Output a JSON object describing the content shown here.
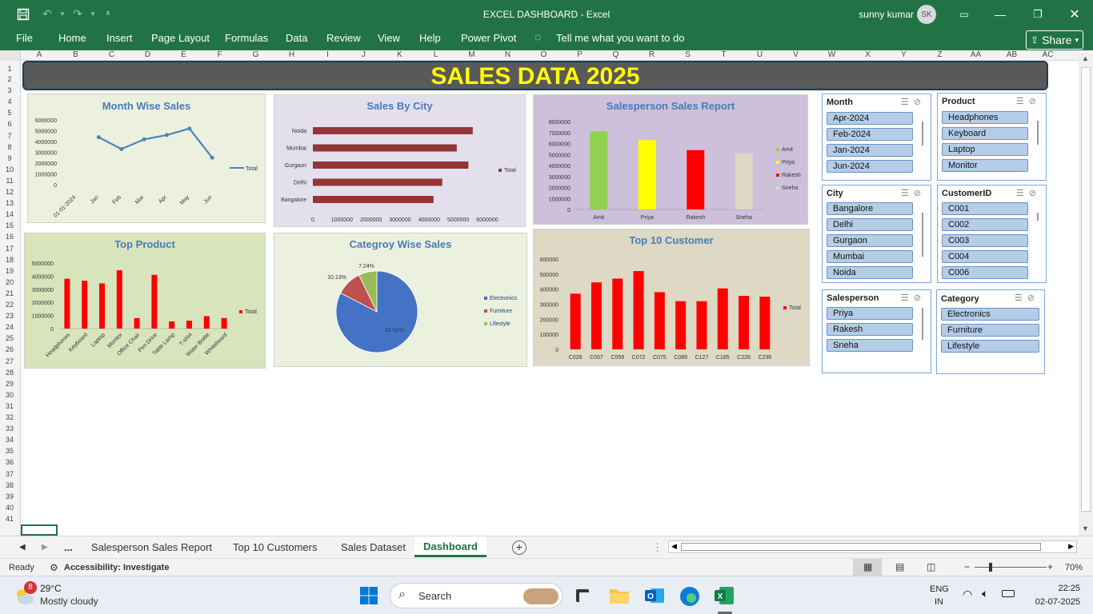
{
  "window": {
    "title": "EXCEL DASHBOARD  -  Excel",
    "user": "sunny kumar",
    "initials": "SK"
  },
  "ribbon": {
    "tabs": [
      "File",
      "Home",
      "Insert",
      "Page Layout",
      "Formulas",
      "Data",
      "Review",
      "View",
      "Help",
      "Power Pivot"
    ],
    "tell_me": "Tell me what you want to do",
    "share": "Share"
  },
  "columns": [
    "A",
    "B",
    "C",
    "D",
    "E",
    "F",
    "G",
    "H",
    "I",
    "J",
    "K",
    "L",
    "M",
    "N",
    "O",
    "P",
    "Q",
    "R",
    "S",
    "T",
    "U",
    "V",
    "W",
    "X",
    "Y",
    "Z",
    "AA",
    "AB",
    "AC"
  ],
  "rows": [
    "1",
    "2",
    "3",
    "4",
    "5",
    "6",
    "7",
    "8",
    "9",
    "10",
    "11",
    "12",
    "13",
    "14",
    "15",
    "16",
    "17",
    "18",
    "19",
    "20",
    "21",
    "22",
    "23",
    "24",
    "25",
    "26",
    "27",
    "28",
    "29",
    "30",
    "31",
    "32",
    "33",
    "34",
    "35",
    "36",
    "37",
    "38",
    "39",
    "40",
    "41"
  ],
  "banner": "SALES DATA 2025",
  "colors": {
    "excel_green": "#217346",
    "bar_red": "#ff0000",
    "city_bar": "#943634",
    "line_blue": "#4f81bd"
  },
  "chart_data": [
    {
      "id": "month",
      "type": "line",
      "title": "Month Wise Sales",
      "categories": [
        "01-01-2024",
        "Jan",
        "Feb",
        "Mar",
        "Apr",
        "May",
        "Jun"
      ],
      "values": [
        null,
        4400000,
        3300000,
        4200000,
        4600000,
        5200000,
        2500000
      ],
      "yticks": [
        "6000000",
        "5000000",
        "4000000",
        "3000000",
        "2000000",
        "1000000",
        "0"
      ],
      "ylim": [
        0,
        6000000
      ],
      "legend": [
        "Total"
      ]
    },
    {
      "id": "city",
      "type": "bar",
      "title": "Sales By City",
      "categories": [
        "Noida",
        "Mumbai",
        "Gurgaon",
        "Delhi",
        "Bangalore"
      ],
      "values": [
        5500000,
        4950000,
        5350000,
        4450000,
        4150000
      ],
      "xticks": [
        "0",
        "1000000",
        "2000000",
        "3000000",
        "4000000",
        "5000000",
        "6000000"
      ],
      "xlim": [
        0,
        6000000
      ],
      "legend": [
        "Total"
      ]
    },
    {
      "id": "salesperson",
      "type": "bar",
      "title": "Salesperson Sales Report",
      "categories": [
        "Amit",
        "Priya",
        "Rakesh",
        "Sneha"
      ],
      "values": [
        7100000,
        6300000,
        5400000,
        5100000
      ],
      "colors": [
        "#92d050",
        "#ffff00",
        "#ff0000",
        "#ddd9c4"
      ],
      "yticks": [
        "8000000",
        "7000000",
        "6000000",
        "5000000",
        "4000000",
        "3000000",
        "2000000",
        "1000000",
        "0"
      ],
      "ylim": [
        0,
        8000000
      ],
      "legend": [
        "Amit",
        "Priya",
        "Rakesh",
        "Sneha"
      ]
    },
    {
      "id": "product",
      "type": "bar",
      "title": "Top Product",
      "categories": [
        "Headphones",
        "Keyboard",
        "Laptop",
        "Monitor",
        "Office Chair",
        "Pen Drive",
        "Table Lamp",
        "T-shirt",
        "Water Bottle",
        "Whiteboard"
      ],
      "values": [
        3800000,
        3650000,
        3450000,
        4450000,
        800000,
        4100000,
        550000,
        600000,
        950000,
        800000
      ],
      "yticks": [
        "5000000",
        "4000000",
        "3000000",
        "2000000",
        "1000000",
        "0"
      ],
      "ylim": [
        0,
        5000000
      ],
      "legend": [
        "Total"
      ]
    },
    {
      "id": "category",
      "type": "pie",
      "title": "Categroy Wise Sales",
      "labels": [
        "Electronics",
        "Furniture",
        "Lifestyle"
      ],
      "values": [
        82.62,
        10.13,
        7.24
      ],
      "data_labels": [
        "82.62%",
        "10.13%",
        "7.24%"
      ],
      "colors": [
        "#4472c4",
        "#c0504d",
        "#9bbb59"
      ]
    },
    {
      "id": "customer",
      "type": "bar",
      "title": "Top 10 Customer",
      "categories": [
        "C026",
        "C057",
        "C059",
        "C072",
        "C075",
        "C089",
        "C127",
        "C185",
        "C226",
        "C236"
      ],
      "values": [
        370000,
        445000,
        470000,
        520000,
        380000,
        320000,
        320000,
        405000,
        355000,
        350000
      ],
      "yticks": [
        "600000",
        "500000",
        "400000",
        "300000",
        "200000",
        "100000",
        "0"
      ],
      "ylim": [
        0,
        600000
      ],
      "legend": [
        "Total"
      ]
    }
  ],
  "slicers": {
    "month": {
      "title": "Month",
      "items": [
        "Apr-2024",
        "Feb-2024",
        "Jan-2024",
        "Jun-2024"
      ]
    },
    "product": {
      "title": "Product",
      "items": [
        "Headphones",
        "Keyboard",
        "Laptop",
        "Monitor"
      ]
    },
    "city": {
      "title": "City",
      "items": [
        "Bangalore",
        "Delhi",
        "Gurgaon",
        "Mumbai",
        "Noida"
      ]
    },
    "customer": {
      "title": "CustomerID",
      "items": [
        "C001",
        "C002",
        "C003",
        "C004",
        "C006"
      ]
    },
    "salesperson": {
      "title": "Salesperson",
      "items": [
        "Priya",
        "Rakesh",
        "Sneha"
      ]
    },
    "category": {
      "title": "Category",
      "items": [
        "Electronics",
        "Furniture",
        "Lifestyle"
      ]
    }
  },
  "sheets": {
    "more": "...",
    "tabs": [
      "Salesperson Sales Report",
      "Top 10 Customers",
      "Sales Dataset",
      "Dashboard"
    ],
    "active": "Dashboard"
  },
  "status": {
    "ready": "Ready",
    "accessibility": "Accessibility: Investigate",
    "zoom": "70%"
  },
  "taskbar": {
    "temp": "29°C",
    "weather": "Mostly cloudy",
    "badge": "8",
    "search": "Search",
    "lang1": "ENG",
    "lang2": "IN",
    "time": "22:25",
    "date": "02-07-2025"
  }
}
